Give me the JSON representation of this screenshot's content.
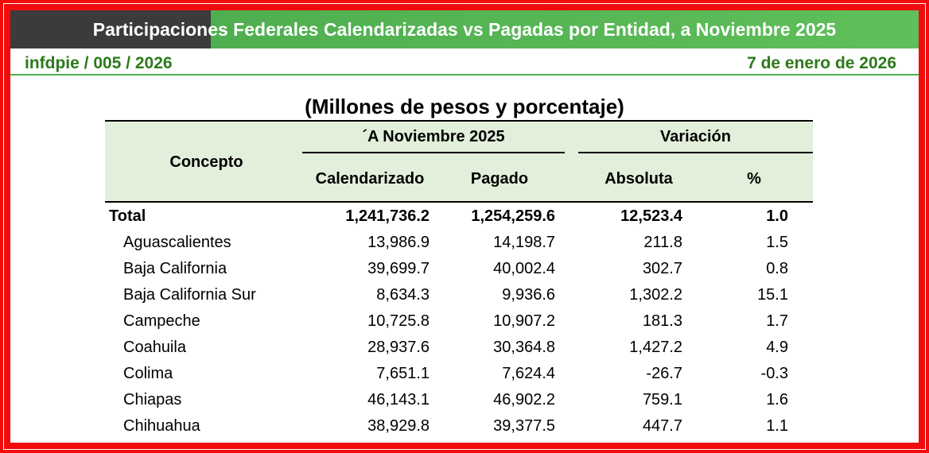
{
  "header": {
    "title": "Participaciones Federales Calendarizadas vs Pagadas por Entidad, a Noviembre 2025",
    "code": "infdpie / 005 / 2026",
    "date": "7 de enero de 2026"
  },
  "table": {
    "subtitle": "(Millones de pesos y porcentaje)",
    "concept": "Concepto",
    "group1": "´A Noviembre 2025",
    "group2": "Variación",
    "columns": [
      "Calendarizado",
      "Pagado",
      "Absoluta",
      "%"
    ],
    "rows": [
      [
        "Total",
        "1,241,736.2",
        "1,254,259.6",
        "12,523.4",
        "1.0"
      ],
      [
        "Aguascalientes",
        "13,986.9",
        "14,198.7",
        "211.8",
        "1.5"
      ],
      [
        "Baja California",
        "39,699.7",
        "40,002.4",
        "302.7",
        "0.8"
      ],
      [
        "Baja California Sur",
        "8,634.3",
        "9,936.6",
        "1,302.2",
        "15.1"
      ],
      [
        "Campeche",
        "10,725.8",
        "10,907.2",
        "181.3",
        "1.7"
      ],
      [
        "Coahuila",
        "28,937.6",
        "30,364.8",
        "1,427.2",
        "4.9"
      ],
      [
        "Colima",
        "7,651.1",
        "7,624.4",
        "-26.7",
        "-0.3"
      ],
      [
        "Chiapas",
        "46,143.1",
        "46,902.2",
        "759.1",
        "1.6"
      ],
      [
        "Chihuahua",
        "38,929.8",
        "39,377.5",
        "447.7",
        "1.1"
      ]
    ]
  }
}
